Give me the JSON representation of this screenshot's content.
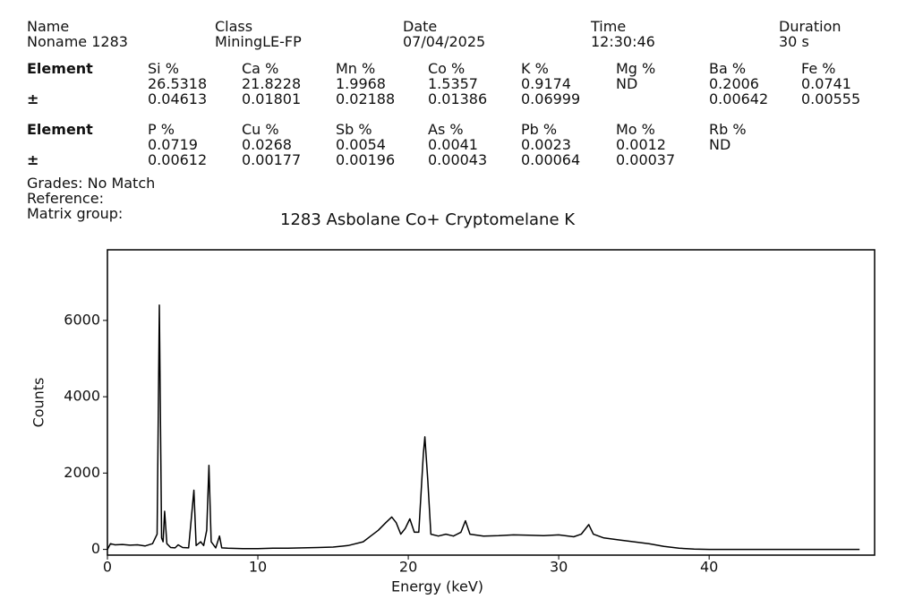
{
  "header": {
    "fields": [
      {
        "label": "Name",
        "value": "Noname 1283"
      },
      {
        "label": "Class",
        "value": "MiningLE-FP"
      },
      {
        "label": "Date",
        "value": "07/04/2025"
      },
      {
        "label": "Time",
        "value": "12:30:46"
      },
      {
        "label": "Duration",
        "value": "30 s"
      }
    ]
  },
  "tables": [
    {
      "label": "Element",
      "error_label": "±",
      "columns": [
        {
          "name": "Si %",
          "value": "26.5318",
          "error": "0.04613"
        },
        {
          "name": "Ca %",
          "value": "21.8228",
          "error": "0.01801"
        },
        {
          "name": "Mn %",
          "value": "1.9968",
          "error": "0.02188"
        },
        {
          "name": "Co %",
          "value": "1.5357",
          "error": "0.01386"
        },
        {
          "name": "K %",
          "value": "0.9174",
          "error": "0.06999"
        },
        {
          "name": "Mg %",
          "value": "ND"
        },
        {
          "name": "Ba %",
          "value": "0.2006",
          "error": "0.00642"
        },
        {
          "name": "Fe %",
          "value": "0.0741",
          "error": "0.00555"
        }
      ]
    },
    {
      "label": "Element",
      "error_label": "±",
      "columns": [
        {
          "name": "P %",
          "value": "0.0719",
          "error": "0.00612"
        },
        {
          "name": "Cu %",
          "value": "0.0268",
          "error": "0.00177"
        },
        {
          "name": "Sb %",
          "value": "0.0054",
          "error": "0.00196"
        },
        {
          "name": "As %",
          "value": "0.0041",
          "error": "0.00043"
        },
        {
          "name": "Pb %",
          "value": "0.0023",
          "error": "0.00064"
        },
        {
          "name": "Mo %",
          "value": "0.0012",
          "error": "0.00037"
        },
        {
          "name": "Rb %",
          "value": "ND"
        }
      ]
    }
  ],
  "notes": {
    "grades": "Grades: No Match",
    "reference": "Reference:",
    "matrix_label": "Matrix group:",
    "matrix_value": "1283 Asbolane Co+ Cryptomelane K"
  },
  "chart_data": {
    "type": "line",
    "x_label": "Energy (keV)",
    "y_label": "Counts",
    "color": "#000000",
    "grid": true,
    "xlim": [
      0,
      51
    ],
    "ylim": [
      -150,
      7850
    ],
    "xticks": [
      0,
      10,
      20,
      30,
      40
    ],
    "yticks": [
      0,
      2000,
      4000,
      6000
    ],
    "x": [
      0,
      0.2,
      0.5,
      1,
      1.5,
      2,
      2.5,
      3,
      3.3,
      3.45,
      3.6,
      3.7,
      3.8,
      3.95,
      4.2,
      4.5,
      4.7,
      5,
      5.4,
      5.75,
      5.9,
      6.2,
      6.4,
      6.6,
      6.75,
      6.9,
      7.2,
      7.45,
      7.6,
      8,
      9,
      10,
      11,
      12,
      13,
      14,
      15,
      16,
      17,
      17.5,
      18,
      18.5,
      18.9,
      19.2,
      19.5,
      19.8,
      20.1,
      20.4,
      20.7,
      21,
      21.1,
      21.3,
      21.5,
      22,
      22.5,
      23,
      23.5,
      23.8,
      24.1,
      25,
      26,
      27,
      28,
      29,
      30,
      31,
      31.5,
      32,
      32.3,
      33,
      34,
      35,
      36,
      37,
      38,
      39,
      40,
      42,
      45,
      50
    ],
    "y": [
      0,
      150,
      120,
      130,
      110,
      120,
      90,
      150,
      400,
      6400,
      300,
      200,
      1000,
      150,
      50,
      40,
      120,
      50,
      40,
      1550,
      100,
      200,
      100,
      500,
      2200,
      200,
      40,
      350,
      40,
      30,
      20,
      20,
      30,
      30,
      40,
      50,
      60,
      100,
      200,
      350,
      500,
      700,
      850,
      700,
      400,
      550,
      800,
      450,
      450,
      2500,
      2950,
      1800,
      400,
      350,
      400,
      350,
      450,
      750,
      400,
      350,
      360,
      380,
      370,
      360,
      380,
      330,
      400,
      650,
      400,
      300,
      250,
      200,
      150,
      80,
      30,
      10,
      0,
      0,
      0,
      0
    ]
  }
}
